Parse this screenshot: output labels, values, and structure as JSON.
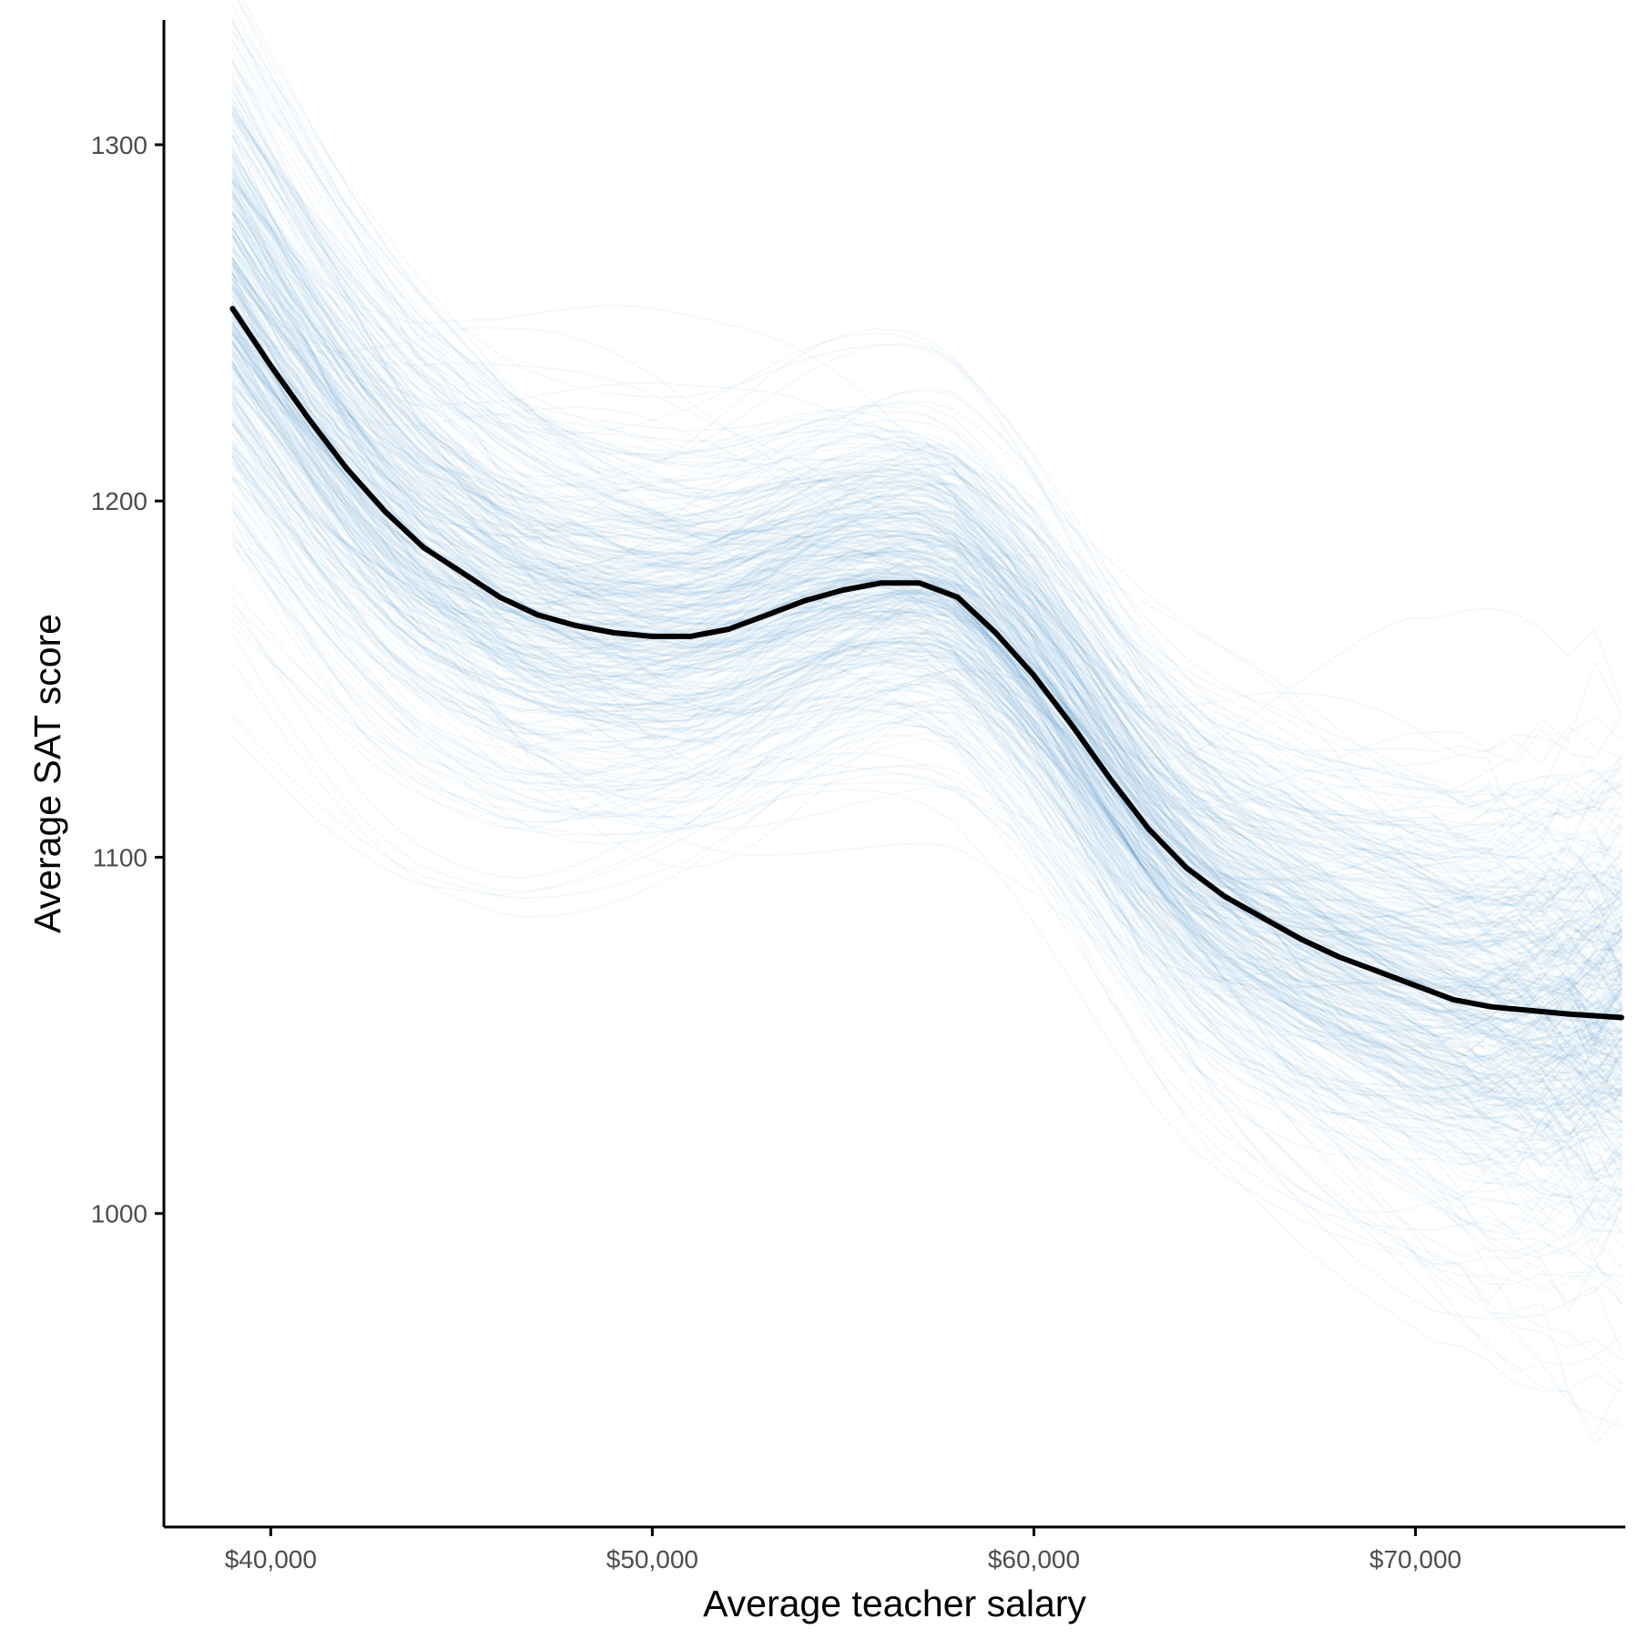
{
  "chart_data": {
    "type": "line",
    "title": "",
    "xlabel": "Average teacher salary",
    "ylabel": "Average SAT score",
    "xlim": [
      37200,
      75500
    ],
    "ylim": [
      912,
      1335
    ],
    "x_ticks": [
      40000,
      50000,
      60000,
      70000
    ],
    "x_tick_labels": [
      "$40,000",
      "$50,000",
      "$60,000",
      "$70,000"
    ],
    "y_ticks": [
      1000,
      1100,
      1200,
      1300
    ],
    "y_tick_labels": [
      "1000",
      "1100",
      "1200",
      "1300"
    ],
    "grid": false,
    "legend": "none",
    "colors": {
      "draws": "#1f78b4",
      "mean": "#000000",
      "axis": "#000000",
      "tick_text": "#4d4d4d"
    },
    "draws": {
      "count": 400,
      "opacity": 0.045,
      "spread_sd": 22,
      "x_range": [
        39000,
        75400
      ]
    },
    "mean_curve": {
      "x": [
        39000,
        40000,
        41000,
        42000,
        43000,
        44000,
        45000,
        46000,
        47000,
        48000,
        49000,
        50000,
        51000,
        52000,
        53000,
        54000,
        55000,
        56000,
        57000,
        58000,
        59000,
        60000,
        61000,
        62000,
        63000,
        64000,
        65000,
        66000,
        67000,
        68000,
        69000,
        70000,
        71000,
        72000,
        73000,
        74000,
        75400
      ],
      "y": [
        1254,
        1238,
        1223,
        1209,
        1197,
        1187,
        1180,
        1173,
        1168,
        1165,
        1163,
        1162,
        1162,
        1164,
        1168,
        1172,
        1175,
        1177,
        1177,
        1173,
        1163,
        1151,
        1137,
        1122,
        1108,
        1097,
        1089,
        1083,
        1077,
        1072,
        1068,
        1064,
        1060,
        1058,
        1057,
        1056,
        1055
      ]
    }
  }
}
